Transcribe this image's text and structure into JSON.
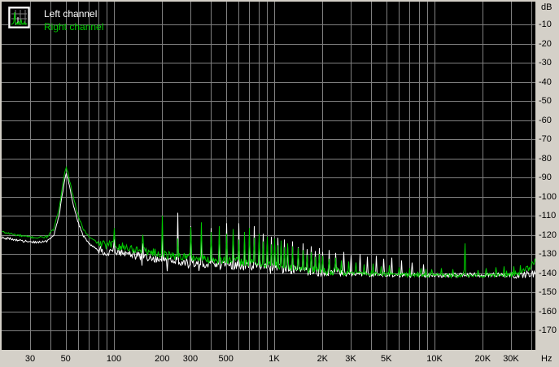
{
  "colors": {
    "plot_bg": "#000000",
    "grid": "#808080",
    "margin_bg": "#d4d0c8",
    "label": "#000000",
    "left_channel": "#ffffff",
    "right_channel": "#00cc00"
  },
  "chart_data": {
    "type": "line",
    "x_scale": "log",
    "axis_units": {
      "x": "Hz",
      "y": "dB"
    },
    "x_range_hz": [
      20,
      42000
    ],
    "y_range_db": [
      -180,
      2
    ],
    "grid": true,
    "legend_position": "top-left",
    "x_gridlines": [
      30,
      40,
      50,
      60,
      70,
      80,
      90,
      100,
      200,
      300,
      400,
      500,
      600,
      700,
      800,
      900,
      1000,
      2000,
      3000,
      4000,
      5000,
      6000,
      7000,
      8000,
      9000,
      10000,
      20000,
      30000,
      40000
    ],
    "x_tick_labels": [
      {
        "f": 30,
        "label": "30"
      },
      {
        "f": 50,
        "label": "50"
      },
      {
        "f": 100,
        "label": "100"
      },
      {
        "f": 200,
        "label": "200"
      },
      {
        "f": 300,
        "label": "300"
      },
      {
        "f": 500,
        "label": "500"
      },
      {
        "f": 1000,
        "label": "1K"
      },
      {
        "f": 2000,
        "label": "2K"
      },
      {
        "f": 3000,
        "label": "3K"
      },
      {
        "f": 5000,
        "label": "5K"
      },
      {
        "f": 10000,
        "label": "10K"
      },
      {
        "f": 20000,
        "label": "20K"
      },
      {
        "f": 30000,
        "label": "30K"
      }
    ],
    "y_tick_labels": [
      {
        "db": -10,
        "label": "-10"
      },
      {
        "db": -20,
        "label": "-20"
      },
      {
        "db": -30,
        "label": "-30"
      },
      {
        "db": -40,
        "label": "-40"
      },
      {
        "db": -50,
        "label": "-50"
      },
      {
        "db": -60,
        "label": "-60"
      },
      {
        "db": -70,
        "label": "-70"
      },
      {
        "db": -80,
        "label": "-80"
      },
      {
        "db": -90,
        "label": "-90"
      },
      {
        "db": -100,
        "label": "-100"
      },
      {
        "db": -110,
        "label": "-110"
      },
      {
        "db": -120,
        "label": "-120"
      },
      {
        "db": -130,
        "label": "-130"
      },
      {
        "db": -140,
        "label": "-140"
      },
      {
        "db": -150,
        "label": "-150"
      },
      {
        "db": -160,
        "label": "-160"
      },
      {
        "db": -170,
        "label": "-170"
      }
    ],
    "legend": [
      {
        "label": "Left channel",
        "color": "#ffffff"
      },
      {
        "label": "Right channel",
        "color": "#00cc00"
      }
    ],
    "series": [
      {
        "name": "Left channel",
        "color": "#ffffff",
        "baseline": [
          [
            20,
            -121.5
          ],
          [
            24,
            -122.5
          ],
          [
            28,
            -123.5
          ],
          [
            33,
            -124
          ],
          [
            38,
            -123.5
          ],
          [
            42,
            -120
          ],
          [
            45,
            -111
          ],
          [
            47,
            -101
          ],
          [
            48.5,
            -94
          ],
          [
            50,
            -87.5
          ],
          [
            51.5,
            -91
          ],
          [
            53,
            -96
          ],
          [
            56,
            -106
          ],
          [
            60,
            -114.5
          ],
          [
            64,
            -120.5
          ],
          [
            70,
            -125
          ],
          [
            78,
            -127.5
          ],
          [
            88,
            -129
          ],
          [
            100,
            -128.5
          ],
          [
            115,
            -130
          ],
          [
            135,
            -130.8
          ],
          [
            160,
            -131.8
          ],
          [
            190,
            -132.8
          ],
          [
            230,
            -133.5
          ],
          [
            280,
            -134.2
          ],
          [
            350,
            -135
          ],
          [
            450,
            -135.8
          ],
          [
            600,
            -136.3
          ],
          [
            800,
            -136.8
          ],
          [
            1000,
            -137.3
          ],
          [
            1300,
            -138.3
          ],
          [
            1700,
            -139.3
          ],
          [
            2200,
            -139.8
          ],
          [
            3000,
            -140.3
          ],
          [
            4000,
            -140.8
          ],
          [
            5500,
            -141
          ],
          [
            8000,
            -141.2
          ],
          [
            12000,
            -141.2
          ],
          [
            17000,
            -141
          ],
          [
            23000,
            -141
          ],
          [
            30000,
            -141
          ],
          [
            35000,
            -141
          ],
          [
            42000,
            -140.5
          ]
        ],
        "spikes": [
          [
            100,
            -122.5
          ],
          [
            150,
            -124.5
          ],
          [
            200,
            -120.5
          ],
          [
            250,
            -108.5
          ],
          [
            300,
            -115.5
          ],
          [
            350,
            -122.5
          ],
          [
            400,
            -116.5
          ],
          [
            450,
            -121.5
          ],
          [
            500,
            -114
          ],
          [
            550,
            -122.5
          ],
          [
            600,
            -114
          ],
          [
            650,
            -123.5
          ],
          [
            700,
            -120.5
          ],
          [
            750,
            -115.5
          ],
          [
            800,
            -123.5
          ],
          [
            850,
            -119.5
          ],
          [
            900,
            -124.5
          ],
          [
            950,
            -121
          ],
          [
            1000,
            -124.5
          ],
          [
            1050,
            -121.5
          ],
          [
            1100,
            -125.5
          ],
          [
            1150,
            -122.5
          ],
          [
            1200,
            -126
          ],
          [
            1300,
            -123.5
          ],
          [
            1400,
            -126.5
          ],
          [
            1500,
            -124.5
          ],
          [
            1600,
            -127.5
          ],
          [
            1700,
            -126
          ],
          [
            1800,
            -128.5
          ],
          [
            1900,
            -127
          ],
          [
            2000,
            -129
          ],
          [
            2200,
            -128
          ],
          [
            2400,
            -129.5
          ],
          [
            2700,
            -129
          ],
          [
            3000,
            -130.5
          ],
          [
            3400,
            -130
          ],
          [
            3800,
            -131.5
          ],
          [
            4300,
            -131
          ],
          [
            4800,
            -132.5
          ],
          [
            5400,
            -132
          ],
          [
            6200,
            -133.5
          ],
          [
            7200,
            -134.5
          ],
          [
            8500,
            -135.5
          ]
        ]
      },
      {
        "name": "Right channel",
        "color": "#00cc00",
        "baseline": [
          [
            20,
            -118.5
          ],
          [
            24,
            -120
          ],
          [
            28,
            -121
          ],
          [
            33,
            -121.5
          ],
          [
            38,
            -121
          ],
          [
            42,
            -117
          ],
          [
            45,
            -107
          ],
          [
            47,
            -97
          ],
          [
            48.5,
            -90
          ],
          [
            50,
            -84
          ],
          [
            51.5,
            -88
          ],
          [
            53,
            -93
          ],
          [
            56,
            -102
          ],
          [
            60,
            -111
          ],
          [
            64,
            -117
          ],
          [
            70,
            -121.5
          ],
          [
            78,
            -124
          ],
          [
            88,
            -125.5
          ],
          [
            100,
            -125
          ],
          [
            115,
            -126.5
          ],
          [
            135,
            -127.5
          ],
          [
            160,
            -128.5
          ],
          [
            190,
            -130
          ],
          [
            230,
            -131
          ],
          [
            280,
            -131.5
          ],
          [
            350,
            -132.5
          ],
          [
            450,
            -133
          ],
          [
            600,
            -134
          ],
          [
            800,
            -135
          ],
          [
            1000,
            -135.8
          ],
          [
            1300,
            -137
          ],
          [
            1700,
            -138
          ],
          [
            2200,
            -139
          ],
          [
            3000,
            -139.8
          ],
          [
            4000,
            -140.3
          ],
          [
            5500,
            -140.8
          ],
          [
            8000,
            -141
          ],
          [
            12000,
            -141.3
          ],
          [
            17000,
            -141.5
          ],
          [
            23000,
            -141.2
          ],
          [
            30000,
            -140.8
          ],
          [
            35000,
            -139.8
          ],
          [
            38500,
            -137.5
          ],
          [
            42000,
            -134
          ]
        ],
        "spikes": [
          [
            100,
            -116.5
          ],
          [
            150,
            -120
          ],
          [
            200,
            -110
          ],
          [
            250,
            -122
          ],
          [
            300,
            -116
          ],
          [
            350,
            -113.5
          ],
          [
            400,
            -118.5
          ],
          [
            450,
            -115.5
          ],
          [
            500,
            -119.5
          ],
          [
            550,
            -117
          ],
          [
            600,
            -122.5
          ],
          [
            650,
            -118.5
          ],
          [
            700,
            -116.5
          ],
          [
            750,
            -121.5
          ],
          [
            800,
            -119.5
          ],
          [
            850,
            -123.5
          ],
          [
            900,
            -121
          ],
          [
            950,
            -125
          ],
          [
            1000,
            -122
          ],
          [
            1050,
            -125.5
          ],
          [
            1100,
            -123
          ],
          [
            1150,
            -126.5
          ],
          [
            1200,
            -124.5
          ],
          [
            1300,
            -126
          ],
          [
            1400,
            -127
          ],
          [
            1500,
            -128
          ],
          [
            1600,
            -130.5
          ],
          [
            1700,
            -129
          ],
          [
            1800,
            -131.5
          ],
          [
            1900,
            -130
          ],
          [
            2000,
            -131
          ],
          [
            2200,
            -132.5
          ],
          [
            2400,
            -132
          ],
          [
            2600,
            -133.5
          ],
          [
            2900,
            -134
          ],
          [
            3200,
            -134.5
          ],
          [
            3600,
            -135.5
          ],
          [
            4100,
            -135
          ],
          [
            4600,
            -136.5
          ],
          [
            5200,
            -136
          ],
          [
            6000,
            -137
          ],
          [
            7000,
            -137.5
          ],
          [
            8200,
            -137.5
          ],
          [
            9500,
            -138
          ],
          [
            11000,
            -137.5
          ],
          [
            13000,
            -138
          ],
          [
            15500,
            -124.5
          ],
          [
            18500,
            -138.5
          ],
          [
            21000,
            -137.5
          ],
          [
            24000,
            -137
          ],
          [
            27000,
            -136.5
          ],
          [
            31000,
            -136.5
          ],
          [
            34000,
            -136
          ]
        ]
      }
    ],
    "noise_texture": {
      "jitter_db_low_band": 0.6,
      "jitter_db_mid_band": 2.2,
      "jitter_db_high_band": 1.1,
      "jitter_db_tail_band": 1.8,
      "band_edges_hz": [
        80,
        2800,
        30000
      ],
      "white_downspikes": {
        "fmin": 130,
        "fmax": 1000,
        "probability": 0.07,
        "depth_db": [
          2.5,
          6.5
        ]
      },
      "green_upticks": {
        "fmin": 2800,
        "fmax": 42000,
        "probability": 0.05,
        "height_db": [
          1.0,
          3.0
        ]
      }
    }
  }
}
